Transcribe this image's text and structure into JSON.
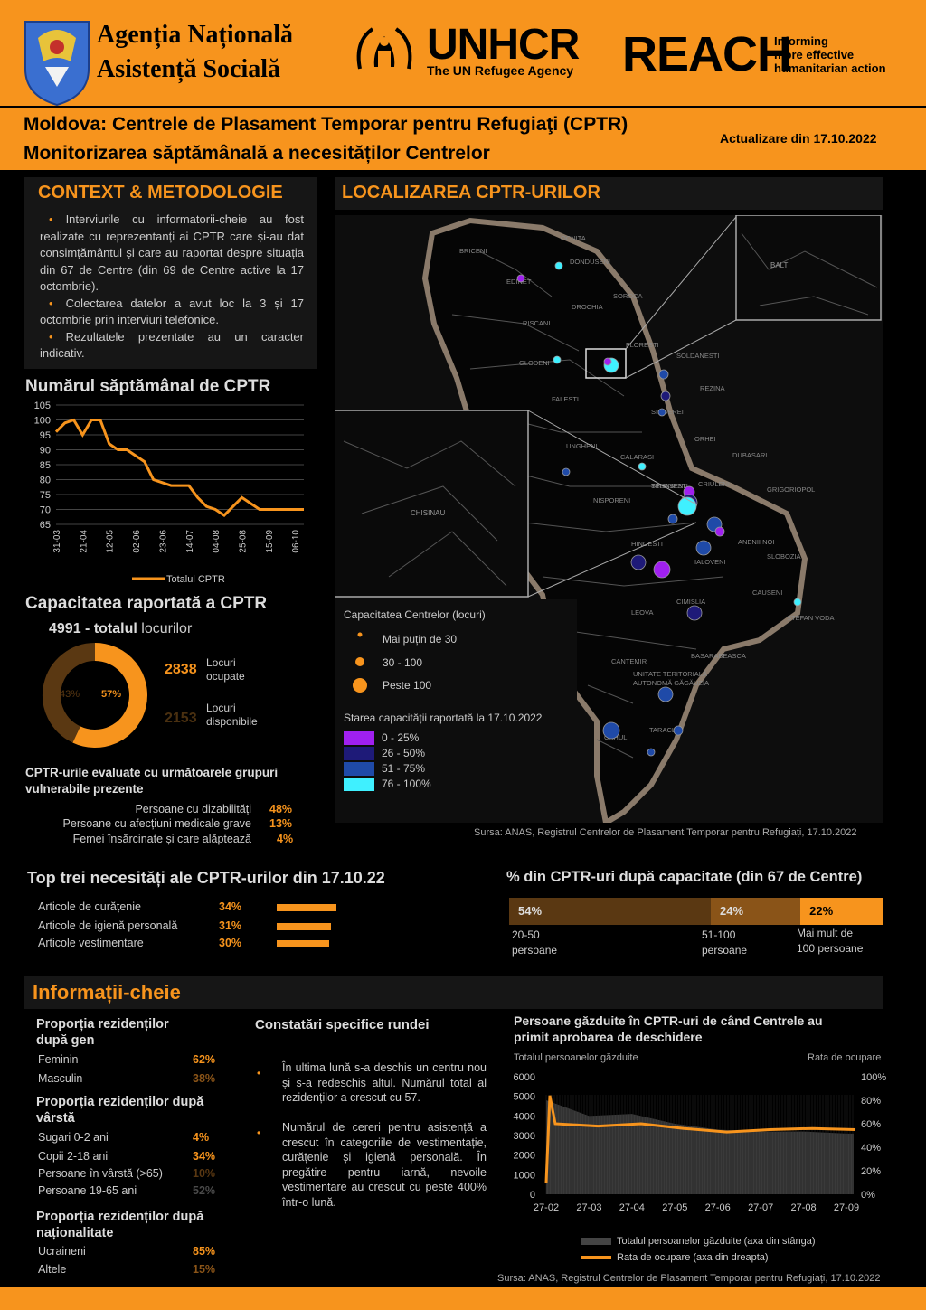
{
  "header": {
    "agency_line1": "Agenția Națională",
    "agency_line2": "Asistență Socială",
    "unhcr": "UNHCR",
    "unhcr_sub": "The UN Refugee Agency",
    "reach": "REACH",
    "reach_sub1": "Informing",
    "reach_sub2": "more effective",
    "reach_sub3": "humanitarian action",
    "title_line1": "Moldova: Centrele de Plasament Temporar pentru Refugiaţi (CPTR)",
    "title_line2": "Monitorizarea săptămânală a necesităților Centrelor",
    "update": "Actualizare din 17.10.2022"
  },
  "context": {
    "heading": "CONTEXT & METODOLOGIE",
    "bullets": [
      "Interviurile cu informatorii-cheie au fost realizate cu reprezentanți ai CPTR care și-au dat consimțământul și care au raportat despre situația din 67 de Centre (din 69 de Centre active la 17 octombrie).",
      "Colectarea datelor a avut loc la 3 și 17 octombrie prin interviuri telefonice.",
      "Rezultatele prezentate au un caracter indicativ."
    ]
  },
  "weekly": {
    "heading": "Numărul săptămânal de CPTR",
    "legend": "Totalul CPTR"
  },
  "chart_data": [
    {
      "type": "line",
      "title": "Numărul săptămânal de CPTR",
      "x": [
        "31-03",
        "07-04",
        "14-04",
        "21-04",
        "28-04",
        "05-05",
        "12-05",
        "19-05",
        "26-05",
        "02-06",
        "09-06",
        "16-06",
        "23-06",
        "30-06",
        "07-07",
        "14-07",
        "21-07",
        "28-07",
        "04-08",
        "11-08",
        "18-08",
        "25-08",
        "01-09",
        "08-09",
        "15-09",
        "22-09",
        "29-09",
        "06-10",
        "13-10"
      ],
      "x_tick_labels": [
        "31-03",
        "21-04",
        "12-05",
        "02-06",
        "23-06",
        "14-07",
        "04-08",
        "25-08",
        "15-09",
        "06-10"
      ],
      "series": [
        {
          "name": "Totalul CPTR",
          "values": [
            96,
            99,
            100,
            95,
            100,
            100,
            92,
            90,
            90,
            88,
            86,
            80,
            79,
            78,
            78,
            78,
            74,
            71,
            70,
            68,
            71,
            74,
            72,
            70,
            70,
            70,
            70,
            70,
            70
          ]
        }
      ],
      "y_tick_labels": [
        "105",
        "100",
        "95",
        "90",
        "85",
        "80",
        "75",
        "70",
        "65"
      ],
      "ylim": [
        65,
        105
      ],
      "color": "#f7941d"
    },
    {
      "type": "pie",
      "title": "Capacitatea raportată a CPTR",
      "categories": [
        "Locuri ocupate",
        "Locuri disponibile"
      ],
      "values": [
        57,
        43
      ],
      "colors": [
        "#f7941d",
        "#5a3812"
      ]
    },
    {
      "type": "bar",
      "title": "Top trei necesități ale CPTR-urilor din 17.10.22",
      "categories": [
        "Articole de curățenie",
        "Articole de igienă personală",
        "Articole vestimentare"
      ],
      "values": [
        34,
        31,
        30
      ]
    },
    {
      "type": "bar",
      "title": "% din CPTR-uri după capacitate (din 67 de Centre)",
      "categories": [
        "20-50 persoane",
        "51-100 persoane",
        "Mai mult de 100 persoane"
      ],
      "values": [
        54,
        24,
        22
      ],
      "colors": [
        "#5a3812",
        "#8a5418",
        "#f7941d"
      ]
    },
    {
      "type": "area",
      "title": "Persoane găzduite în CPTR-uri de când Centrele au primit aprobarea de deschidere",
      "x": [
        "27-02",
        "27-03",
        "27-04",
        "27-05",
        "27-06",
        "27-07",
        "27-08",
        "27-09"
      ],
      "series": [
        {
          "name": "Totalul persoanelor găzduite (axa din stânga)",
          "values": [
            4800,
            4000,
            4100,
            3600,
            3300,
            3200,
            3200,
            3100
          ]
        },
        {
          "name": "Rata de ocupare (axa din dreapta)",
          "values": [
            60,
            58,
            60,
            56,
            53,
            55,
            56,
            55
          ]
        }
      ],
      "ylim": [
        0,
        6000
      ],
      "y2lim": [
        0,
        100
      ],
      "y_tick_labels": [
        "6000",
        "5000",
        "4000",
        "3000",
        "2000",
        "1000",
        "0"
      ],
      "y2_tick_labels": [
        "100%",
        "80%",
        "60%",
        "40%",
        "20%",
        "0%"
      ],
      "ylabel": "Totalul persoanelor găzduite",
      "y2label": "Rata de ocupare"
    }
  ],
  "capacity": {
    "heading": "Capacitatea raportată a CPTR",
    "total_num": "4991 - totalul",
    "total_label": "locurilor",
    "occupied_num": "2838",
    "occupied_label1": "Locuri",
    "occupied_label2": "ocupate",
    "available_num": "2153",
    "available_label1": "Locuri",
    "available_label2": "disponibile",
    "pct_available": "43%",
    "pct_occupied": "57%"
  },
  "vulnerable": {
    "heading1": "CPTR-urile evaluate cu următoarele grupuri",
    "heading2": "vulnerabile prezente",
    "rows": [
      {
        "label": "Persoane cu dizabilități",
        "value": "48%"
      },
      {
        "label": "Persoane cu afecțiuni medicale grave",
        "value": "13%"
      },
      {
        "label": "Femei însărcinate și care alăptează",
        "value": "4%"
      }
    ]
  },
  "map": {
    "heading": "LOCALIZAREA CPTR-URILOR",
    "legend_cap_title": "Capacitatea Centrelor (locuri)",
    "legend_cap": [
      "Mai puțin de 30",
      "30 - 100",
      "Peste 100"
    ],
    "legend_state_title": "Starea capacității raportată la 17.10.2022",
    "legend_state": [
      "0 - 25%",
      "26 - 50%",
      "51 - 75%",
      "76 - 100%"
    ],
    "legend_state_colors": [
      "#a020f0",
      "#1e1a78",
      "#1f4aa8",
      "#3ff0ff"
    ],
    "source": "Sursa: ANAS, Registrul Centrelor de Plasament Temporar pentru Refugiați, 17.10.2022",
    "labels": [
      "OCNITA",
      "BRICENI",
      "EDINET",
      "DONDUSENI",
      "SOROCA",
      "DROCHIA",
      "RISCANI",
      "FLORESTI",
      "GLODENI",
      "SOLDANESTI",
      "BALTI",
      "REZINA",
      "FALESTI",
      "SINGEREI",
      "ORHEI",
      "UNGHENI",
      "TELENESTI",
      "CALARASI",
      "CRIULENI",
      "STRASENI",
      "DUBASARI",
      "NISPORENI",
      "GRIGORIOPOL",
      "HINCESTI",
      "ANENII NOI",
      "IALOVENI",
      "SLOBOZIA",
      "CAUSENI",
      "CIMISLIA",
      "LEOVA",
      "STEFAN VODA",
      "BASARABEASCA",
      "CANTEMIR",
      "UNITATE TERITORIALĂ AUTONOMĂ GĂGĂUZIA",
      "TARACLIA",
      "CAHUL",
      "CHISINAU"
    ]
  },
  "needs": {
    "heading": "Top trei necesități ale CPTR-urilor din 17.10.22",
    "rows": [
      {
        "label": "Articole de curățenie",
        "value": "34%"
      },
      {
        "label": "Articole de igienă personală",
        "value": "31%"
      },
      {
        "label": "Articole vestimentare",
        "value": "30%"
      }
    ]
  },
  "bycap": {
    "heading": "% din CPTR-uri după capacitate (din 67 de Centre)",
    "segments": [
      {
        "value": "54%",
        "label1": "20-50",
        "label2": "persoane"
      },
      {
        "value": "24%",
        "label1": "51-100",
        "label2": "persoane"
      },
      {
        "value": "22%",
        "label1": "Mai mult de",
        "label2": "100 persoane"
      }
    ]
  },
  "key": {
    "heading": "Informații-cheie",
    "gender_h1": "Proporția rezidenților",
    "gender_h2": "după gen",
    "gender": [
      {
        "label": "Feminin",
        "value": "62%"
      },
      {
        "label": "Masculin",
        "value": "38%"
      }
    ],
    "age_h1": "Proporția rezidenților după",
    "age_h2": "vârstă",
    "age": [
      {
        "label": "Sugari 0-2 ani",
        "value": "4%"
      },
      {
        "label": "Copii 2-18 ani",
        "value": "34%"
      },
      {
        "label": "Persoane în vârstă (>65)",
        "value": "10%"
      },
      {
        "label": "Persoane 19-65 ani",
        "value": "52%"
      }
    ],
    "nat_h1": "Proporția rezidenților după",
    "nat_h2": "naționalitate",
    "nat": [
      {
        "label": "Ucraineni",
        "value": "85%"
      },
      {
        "label": "Altele",
        "value": "15%"
      }
    ],
    "findings_h": "Constatări specifice rundei",
    "findings": [
      "În ultima lună s-a deschis un centru nou și s-a redeschis altul. Numărul total al rezidenților a crescut cu 57.",
      "Numărul de cereri pentru asistență a crescut în categoriile de vestimentație, curățenie și igienă personală. În pregătire pentru iarnă, nevoile vestimentare au crescut cu peste 400% într-o lună."
    ],
    "hosted_h1": "Persoane găzduite în CPTR-uri de când Centrele au",
    "hosted_h2": "primit aprobarea de deschidere",
    "hosted_left": "Totalul persoanelor găzduite",
    "hosted_right": "Rata de ocupare",
    "hosted_legend1": "Totalul persoanelor găzduite (axa din stânga)",
    "hosted_legend2": "Rata de ocupare (axa din dreapta)",
    "source": "Sursa: ANAS, Registrul Centrelor de Plasament Temporar pentru Refugiați, 17.10.2022"
  },
  "colors": {
    "accent": "#f7941d",
    "background": "#000000",
    "panel": "#161616"
  }
}
